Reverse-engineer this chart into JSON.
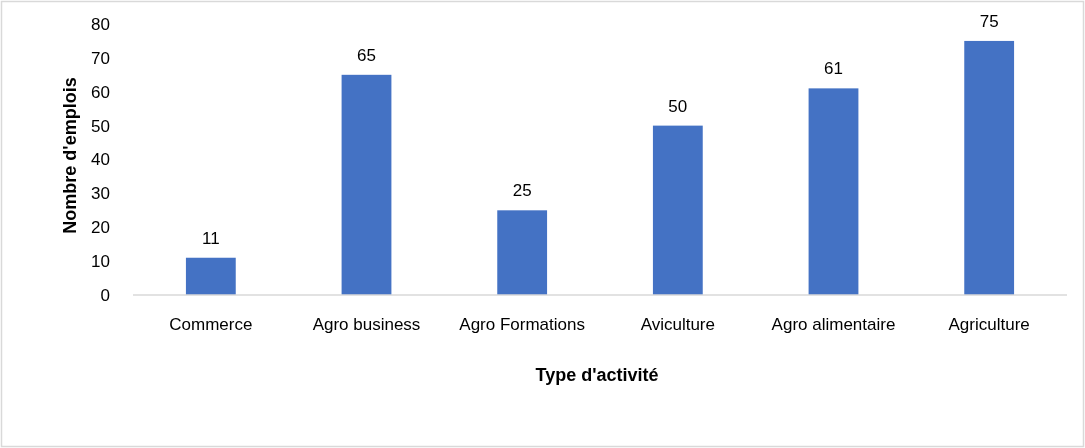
{
  "chart_data": {
    "type": "bar",
    "xlabel": "Type d'activité",
    "ylabel": "Nombre d'emplois",
    "categories": [
      "Commerce",
      "Agro business",
      "Agro Formations",
      "Aviculture",
      "Agro alimentaire",
      "Agriculture"
    ],
    "values": [
      11,
      65,
      25,
      50,
      61,
      75
    ],
    "color": "#4472c4",
    "ylim": [
      0,
      80
    ],
    "yticks": [
      0,
      10,
      20,
      30,
      40,
      50,
      60,
      70,
      80
    ],
    "data_labels": true
  }
}
